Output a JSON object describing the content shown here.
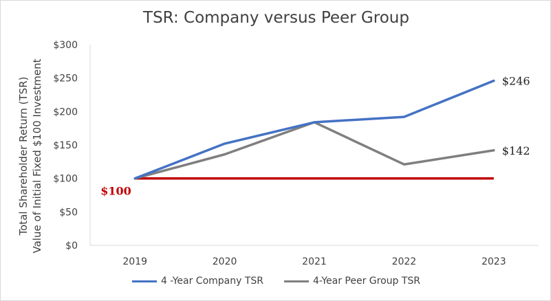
{
  "title": "TSR: Company versus Peer Group",
  "colors": {
    "company": "#4472c4",
    "peer": "#7f7f7f",
    "reference": "#c00000",
    "axis": "#d9d9d9"
  },
  "chart_data": {
    "type": "line",
    "title": "TSR: Company versus Peer Group",
    "ylabel_line1": "Total Shareholder Return (TSR)",
    "ylabel_line2": "Value of Initial Fixed $100 Investment",
    "xlabel": "",
    "categories": [
      "2019",
      "2020",
      "2021",
      "2022",
      "2023"
    ],
    "ylim": [
      0,
      300
    ],
    "ytick_values": [
      0,
      50,
      100,
      150,
      200,
      250,
      300
    ],
    "ytick_labels": [
      "$0",
      "$50",
      "$100",
      "$150",
      "$200",
      "$250",
      "$300"
    ],
    "grid": false,
    "legend_position": "bottom",
    "series": [
      {
        "name": "4 -Year Company TSR",
        "values": [
          100,
          152,
          184,
          192,
          246
        ],
        "end_label": "$246"
      },
      {
        "name": "4-Year Peer Group TSR",
        "values": [
          100,
          136,
          184,
          121,
          142
        ],
        "end_label": "$142"
      }
    ],
    "reference_line": {
      "value": 100,
      "label": "$100"
    }
  }
}
